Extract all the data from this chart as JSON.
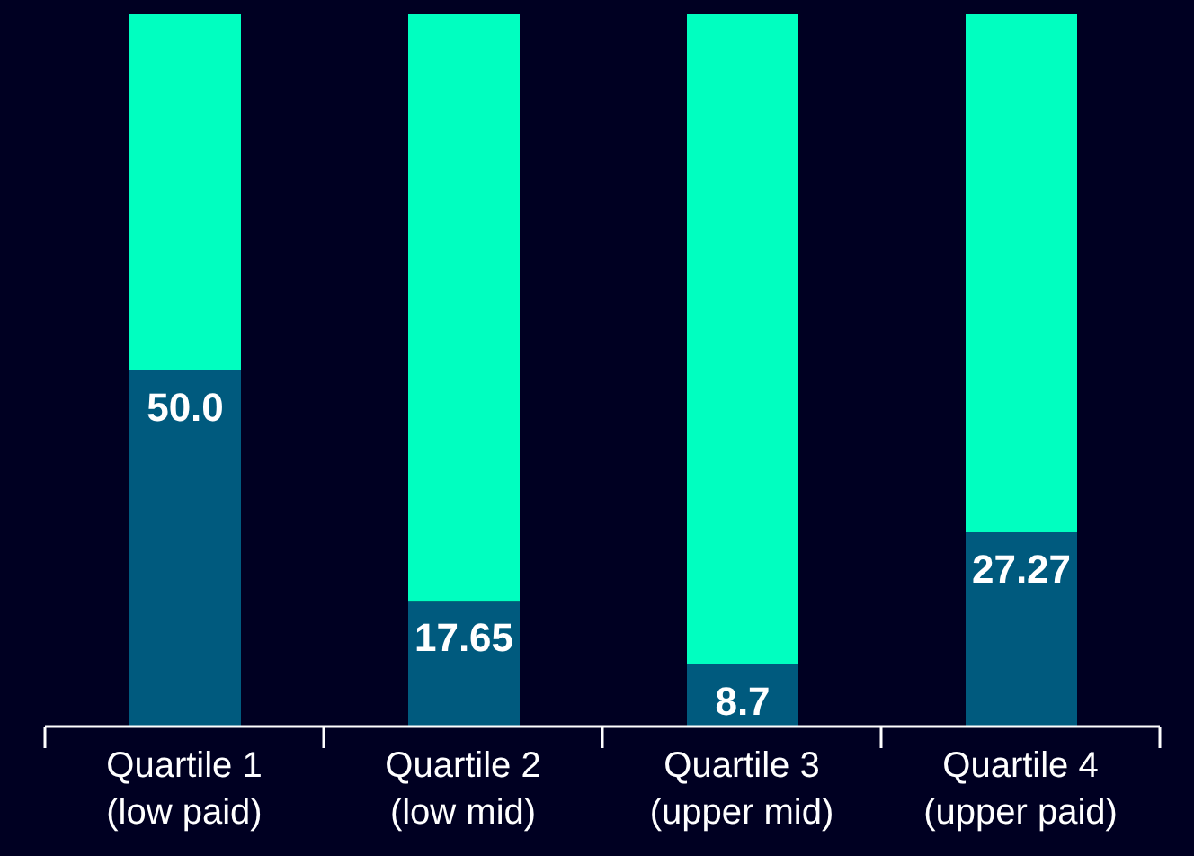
{
  "chart_data": {
    "type": "bar",
    "stacked": true,
    "categories": [
      "Quartile 1\n(low paid)",
      "Quartile 2\n(low mid)",
      "Quartile 3\n(upper mid)",
      "Quartile 4\n(upper paid)"
    ],
    "ylim": [
      0,
      100
    ],
    "tick_labels": "x",
    "series": [
      {
        "color": "#005a7e",
        "values": [
          50.0,
          17.65,
          8.7,
          27.27
        ],
        "value_labels": [
          "50.0",
          "17.65",
          "8.7",
          "27.27"
        ]
      },
      {
        "color": "#00ffc0",
        "values": [
          50.0,
          82.35,
          91.3,
          72.73
        ]
      }
    ]
  }
}
